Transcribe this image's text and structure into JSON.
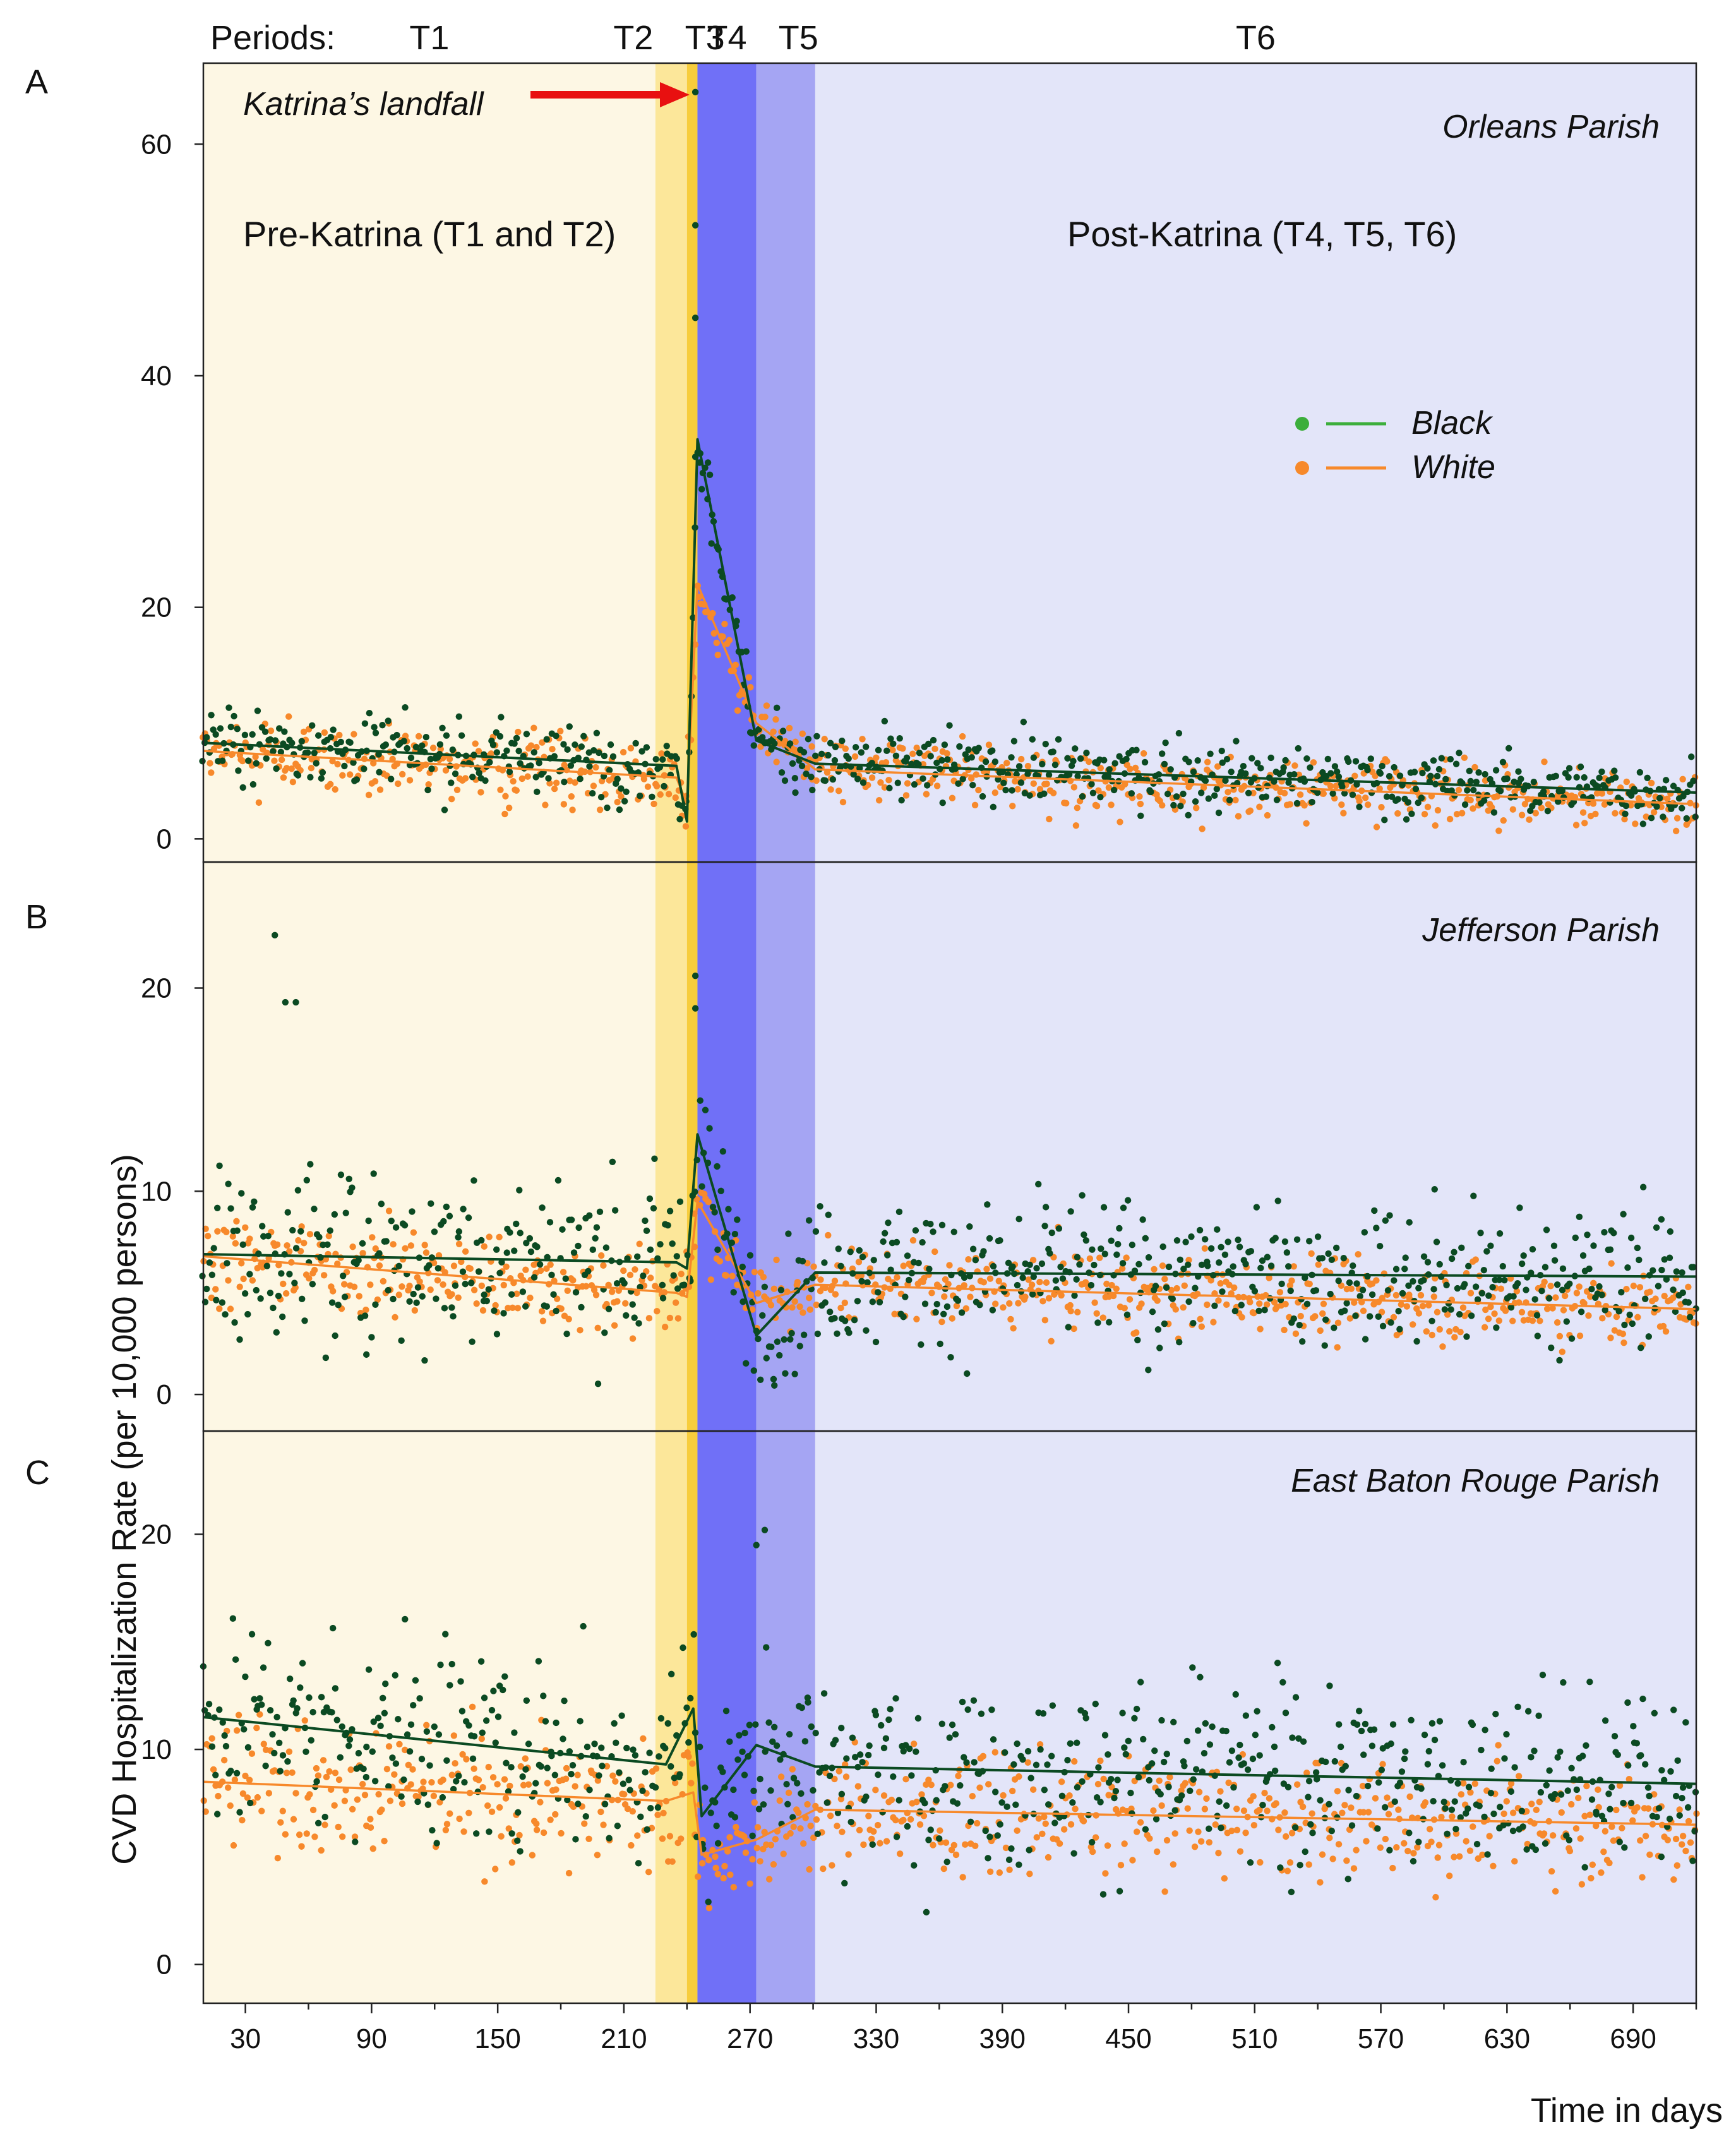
{
  "chart_data": {
    "type": "scatter",
    "periods_label": "Periods:",
    "periods": [
      {
        "name": "T1",
        "start": 10,
        "end": 225,
        "color": "#fdf7e4"
      },
      {
        "name": "T2",
        "start": 225,
        "end": 240,
        "color": "#fce79a"
      },
      {
        "name": "T3",
        "start": 240,
        "end": 245,
        "color": "#f7cd3c"
      },
      {
        "name": "T4",
        "start": 245,
        "end": 273,
        "color": "#7070f7"
      },
      {
        "name": "T5",
        "start": 273,
        "end": 301,
        "color": "#a5a5f3"
      },
      {
        "name": "T6",
        "start": 301,
        "end": 720,
        "color": "#e3e5f9"
      }
    ],
    "xlabel": "Time in days",
    "ylabel": "CVD Hospitalization Rate (per 10,000 persons)",
    "xlim": [
      10,
      720
    ],
    "xticks": [
      30,
      90,
      150,
      210,
      270,
      330,
      390,
      450,
      510,
      570,
      630,
      690
    ],
    "legend": [
      {
        "name": "Black",
        "color": "#0b4a22",
        "marker_color": "#3cae3c",
        "line_color": "#3cae3c"
      },
      {
        "name": "White",
        "color": "#f7892b",
        "marker_color": "#f7892b",
        "line_color": "#f7892b"
      }
    ],
    "annotations": {
      "landfall": {
        "text": "Katrina’s landfall",
        "day": 243
      },
      "pre": "Pre-Katrina (T1 and T2)",
      "post": "Post-Katrina (T4, T5, T6)"
    },
    "panels": [
      {
        "letter": "A",
        "parish": "Orleans Parish",
        "ylim": [
          -2,
          67
        ],
        "yticks": [
          0,
          20,
          40,
          60
        ],
        "black": {
          "mean_x": [
            10,
            235,
            240,
            245,
            273,
            301,
            720
          ],
          "mean_y": [
            8.3,
            6.3,
            1.5,
            34.5,
            8.5,
            6.5,
            4.0
          ],
          "noise_pre": 2.6,
          "noise_post": 2.4,
          "spikes_x": [
            244,
            244,
            244,
            244,
            246,
            250,
            252,
            255
          ],
          "spikes_y": [
            64.5,
            53,
            45,
            33,
            32.5,
            32.5,
            28,
            25
          ]
        },
        "white": {
          "mean_x": [
            10,
            235,
            240,
            245,
            273,
            301,
            720
          ],
          "mean_y": [
            7.6,
            5.3,
            3.0,
            22,
            10,
            6.0,
            3.0
          ],
          "noise_pre": 2.5,
          "noise_post": 2.2,
          "spikes_x": [],
          "spikes_y": []
        }
      },
      {
        "letter": "B",
        "parish": "Jefferson Parish",
        "ylim": [
          -1.8,
          26.2
        ],
        "yticks": [
          0,
          10,
          20
        ],
        "black": {
          "mean_x": [
            10,
            235,
            240,
            245,
            273,
            301,
            720
          ],
          "mean_y": [
            6.9,
            6.5,
            6.2,
            12.8,
            2.9,
            6.0,
            5.8
          ],
          "noise_pre": 3.8,
          "noise_post": 3.0,
          "spikes_x": [
            44,
            49,
            54,
            244,
            244
          ],
          "spikes_y": [
            22.6,
            19.3,
            19.3,
            20.6,
            19.0
          ]
        },
        "white": {
          "mean_x": [
            10,
            235,
            240,
            245,
            273,
            301,
            720
          ],
          "mean_y": [
            6.8,
            5.0,
            4.8,
            9.5,
            4.5,
            5.4,
            4.2
          ],
          "noise_pre": 1.9,
          "noise_post": 1.6,
          "spikes_x": [],
          "spikes_y": []
        }
      },
      {
        "letter": "C",
        "parish": "East Baton Rouge Parish",
        "ylim": [
          -1.8,
          24.8
        ],
        "yticks": [
          0,
          10,
          20
        ],
        "black": {
          "mean_x": [
            10,
            230,
            243,
            247,
            273,
            301,
            720
          ],
          "mean_y": [
            11.5,
            9.3,
            11.9,
            6.9,
            10.2,
            9.2,
            8.4
          ],
          "noise_pre": 4.0,
          "noise_post": 3.6,
          "spikes_x": [
            273,
            277
          ],
          "spikes_y": [
            19.5,
            20.2
          ]
        },
        "white": {
          "mean_x": [
            10,
            230,
            243,
            247,
            273,
            301,
            720
          ],
          "mean_y": [
            8.5,
            7.6,
            8.0,
            5.1,
            5.8,
            7.2,
            6.5
          ],
          "noise_pre": 2.7,
          "noise_post": 2.4,
          "spikes_x": [],
          "spikes_y": []
        }
      }
    ]
  }
}
